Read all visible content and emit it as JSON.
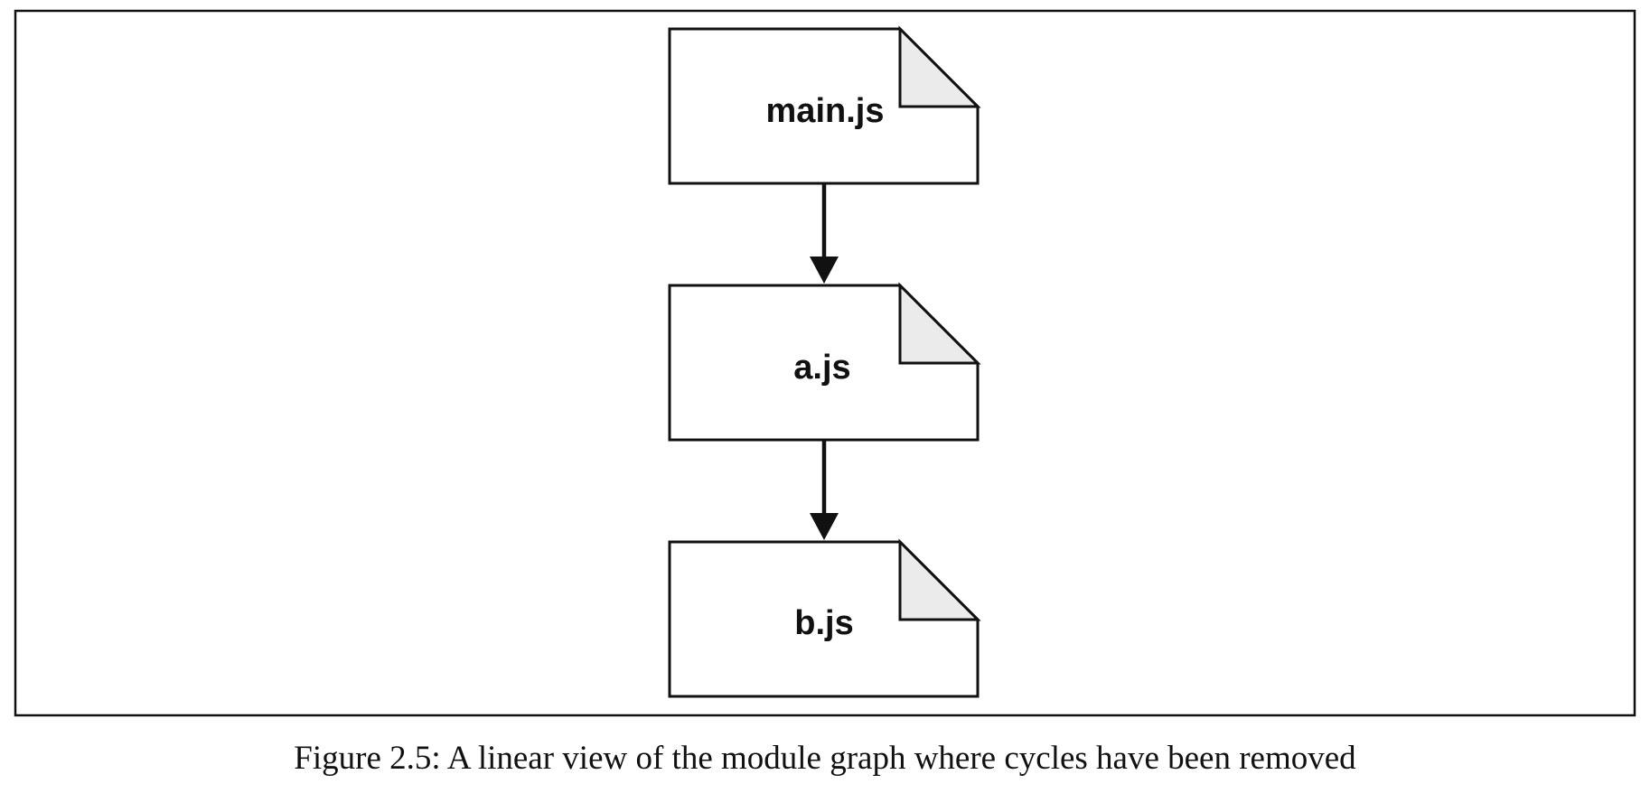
{
  "diagram": {
    "type": "module-dependency-graph",
    "nodes": [
      {
        "id": "main",
        "label": "main.js",
        "shape": "file-document"
      },
      {
        "id": "a",
        "label": "a.js",
        "shape": "file-document"
      },
      {
        "id": "b",
        "label": "b.js",
        "shape": "file-document"
      }
    ],
    "edges": [
      {
        "from": "main",
        "to": "a"
      },
      {
        "from": "a",
        "to": "b"
      }
    ],
    "colors": {
      "stroke": "#111111",
      "file_fill": "#ffffff",
      "fold_fill": "#ebebeb",
      "frame": "#111111"
    }
  },
  "caption": "Figure 2.5: A linear view of the module graph where cycles have been removed"
}
